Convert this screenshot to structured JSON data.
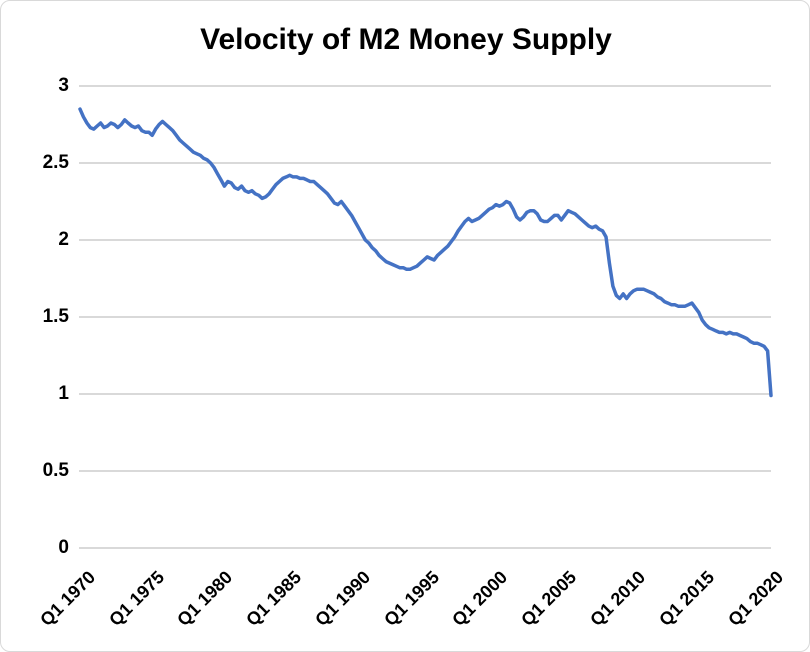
{
  "chart_data": {
    "type": "line",
    "title": "Velocity of M2 Money Supply",
    "frequency": "quarterly",
    "start_period": "Q1 1970",
    "end_period": "Q2 2020",
    "xlabel": "",
    "ylabel": "",
    "ylim": [
      0,
      3
    ],
    "y_tick_labels": [
      "3",
      "2.5",
      "2",
      "1.5",
      "1",
      "0.5",
      "0"
    ],
    "y_tick_values": [
      3,
      2.5,
      2,
      1.5,
      1,
      0.5,
      0
    ],
    "x_tick_labels": [
      "Q1 1970",
      "Q1 1975",
      "Q1 1980",
      "Q1 1985",
      "Q1 1990",
      "Q1 1995",
      "Q1 2000",
      "Q1 2005",
      "Q1 2010",
      "Q1 2015",
      "Q1 2020"
    ],
    "x_tick_quarter_indices": [
      0,
      20,
      40,
      60,
      80,
      100,
      120,
      140,
      160,
      180,
      200
    ],
    "grid": "horizontal",
    "legend_position": "none",
    "series": [
      {
        "name": "Velocity of M2 Money Supply",
        "color": "#4472C4",
        "values": [
          2.85,
          2.8,
          2.76,
          2.73,
          2.72,
          2.74,
          2.76,
          2.73,
          2.74,
          2.76,
          2.75,
          2.73,
          2.75,
          2.78,
          2.76,
          2.74,
          2.73,
          2.74,
          2.71,
          2.7,
          2.7,
          2.68,
          2.72,
          2.75,
          2.77,
          2.75,
          2.73,
          2.71,
          2.68,
          2.65,
          2.63,
          2.61,
          2.59,
          2.57,
          2.56,
          2.55,
          2.53,
          2.52,
          2.5,
          2.47,
          2.43,
          2.39,
          2.35,
          2.38,
          2.37,
          2.34,
          2.33,
          2.35,
          2.32,
          2.31,
          2.32,
          2.3,
          2.29,
          2.27,
          2.28,
          2.3,
          2.33,
          2.36,
          2.38,
          2.4,
          2.41,
          2.42,
          2.41,
          2.41,
          2.4,
          2.4,
          2.39,
          2.38,
          2.38,
          2.36,
          2.34,
          2.32,
          2.3,
          2.27,
          2.24,
          2.23,
          2.25,
          2.22,
          2.19,
          2.16,
          2.12,
          2.08,
          2.04,
          2.0,
          1.98,
          1.95,
          1.93,
          1.9,
          1.88,
          1.86,
          1.85,
          1.84,
          1.83,
          1.82,
          1.82,
          1.81,
          1.81,
          1.82,
          1.83,
          1.85,
          1.87,
          1.89,
          1.88,
          1.87,
          1.9,
          1.92,
          1.94,
          1.96,
          1.99,
          2.02,
          2.06,
          2.09,
          2.12,
          2.14,
          2.12,
          2.13,
          2.14,
          2.16,
          2.18,
          2.2,
          2.21,
          2.23,
          2.22,
          2.23,
          2.25,
          2.24,
          2.2,
          2.15,
          2.13,
          2.15,
          2.18,
          2.19,
          2.19,
          2.17,
          2.13,
          2.12,
          2.12,
          2.14,
          2.16,
          2.16,
          2.13,
          2.16,
          2.19,
          2.18,
          2.17,
          2.15,
          2.13,
          2.11,
          2.09,
          2.08,
          2.09,
          2.07,
          2.06,
          2.02,
          1.85,
          1.7,
          1.64,
          1.62,
          1.65,
          1.62,
          1.65,
          1.67,
          1.68,
          1.68,
          1.68,
          1.67,
          1.66,
          1.65,
          1.63,
          1.62,
          1.6,
          1.59,
          1.58,
          1.58,
          1.57,
          1.57,
          1.57,
          1.58,
          1.59,
          1.56,
          1.53,
          1.48,
          1.45,
          1.43,
          1.42,
          1.41,
          1.4,
          1.4,
          1.39,
          1.4,
          1.39,
          1.39,
          1.38,
          1.37,
          1.36,
          1.34,
          1.33,
          1.33,
          1.32,
          1.31,
          1.28,
          0.99
        ]
      }
    ]
  },
  "colors": {
    "line": "#4472C4",
    "gridline": "#D9D9D9",
    "axis_line": "#D9D9D9",
    "text": "#000000",
    "background": "#FFFFFF"
  }
}
